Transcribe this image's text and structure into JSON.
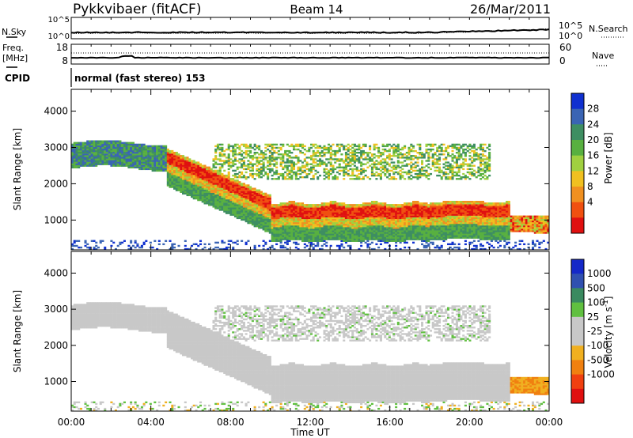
{
  "header": {
    "station": "Pykkvibaer (fitACF)",
    "beam": "Beam 14",
    "date": "26/Mar/2011"
  },
  "nsky_panel": {
    "left_label": "N.Sky",
    "right_label": "N.Search",
    "left_ticks": [
      "10^5",
      "10^0"
    ],
    "right_ticks": [
      "10^5",
      "10^0"
    ]
  },
  "freq_panel": {
    "left_label_1": "Freq.",
    "left_label_2": "[MHz]",
    "right_label": "Nave",
    "left_ticks": [
      "18",
      "8"
    ],
    "right_ticks": [
      "60",
      "0"
    ]
  },
  "cpid": {
    "label": "CPID",
    "value": "normal (fast stereo) 153"
  },
  "chart_data": [
    {
      "type": "heatmap",
      "quantity": "Power",
      "ylabel": "Slant Range [km]",
      "ylim": [
        180,
        4600
      ],
      "yticks": [
        "1000",
        "2000",
        "3000",
        "4000"
      ],
      "x_ticks": [
        "00:00",
        "04:00",
        "08:00",
        "12:00",
        "16:00",
        "20:00",
        "00:00"
      ],
      "colorbar": {
        "label": "Power [dB]",
        "ticks": [
          "4",
          "8",
          "12",
          "16",
          "20",
          "24",
          "28"
        ],
        "colors": [
          "#1030d0",
          "#3a64b4",
          "#3e8e62",
          "#58b040",
          "#a0d040",
          "#f0c020",
          "#f09020",
          "#f05010",
          "#e01010"
        ]
      }
    },
    {
      "type": "heatmap",
      "quantity": "Velocity",
      "ylabel": "Slant Range [km]",
      "ylim": [
        180,
        4600
      ],
      "yticks": [
        "1000",
        "2000",
        "3000",
        "4000"
      ],
      "x_ticks": [
        "00:00",
        "04:00",
        "08:00",
        "12:00",
        "16:00",
        "20:00",
        "00:00"
      ],
      "xlabel": "Time UT",
      "colorbar": {
        "label": "Velocity [m s",
        "label_sup": "-1",
        "label_end": "]",
        "ticks": [
          "1000",
          "500",
          "100",
          "25",
          "-25",
          "-100",
          "-500",
          "-1000"
        ],
        "colors": [
          "#1428c8",
          "#3050b0",
          "#3a8a60",
          "#60c040",
          "#c8c8c8",
          "#c8c8c8",
          "#f0b020",
          "#f08010",
          "#f04010",
          "#e01010"
        ]
      }
    }
  ]
}
